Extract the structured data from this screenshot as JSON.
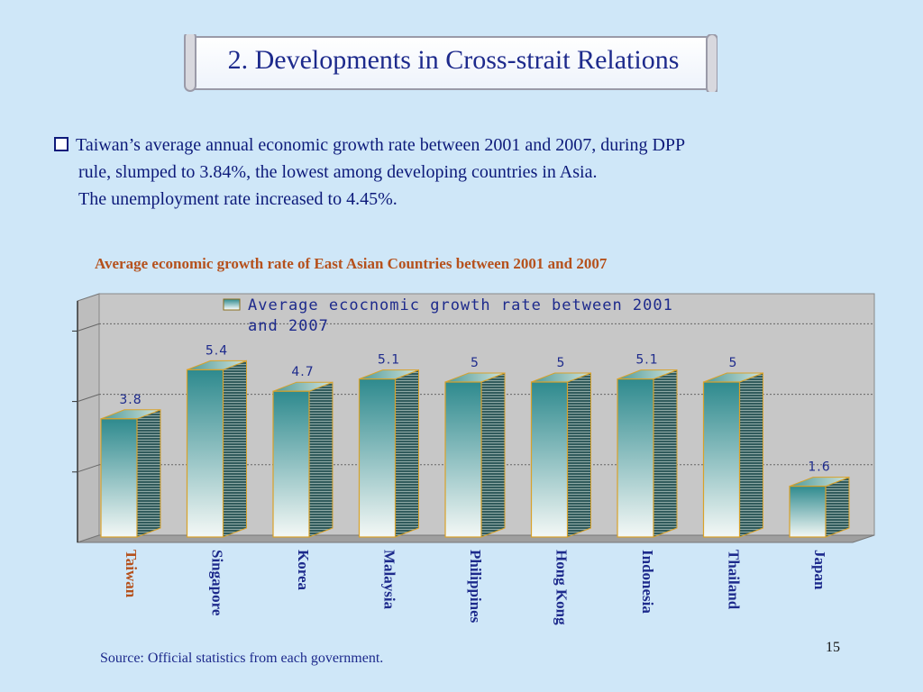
{
  "slide": {
    "title": "2. Developments in Cross-strait Relations",
    "bullet_line1": "Taiwan’s average annual economic growth rate between 2001 and 2007, during DPP",
    "bullet_line2": "rule, slumped to 3.84%, the lowest among developing countries in Asia.",
    "bullet_line3": "The unemployment rate increased to 4.45%.",
    "source": "Source: Official statistics from each government.",
    "page_number": "15"
  },
  "chart_data": {
    "type": "bar",
    "title": "Average economic growth rate of East Asian Countries between  2001 and 2007",
    "categories": [
      "Taiwan",
      "Singapore",
      "Korea",
      "Malaysia",
      "Philippines",
      "Hong Kong",
      "Indonesia",
      "Thailand",
      "Japan"
    ],
    "series": [
      {
        "name": "Average ecocnomic growth rate between 2001 and 2007",
        "values": [
          3.8,
          5.4,
          4.7,
          5.1,
          5,
          5,
          5.1,
          5,
          1.6
        ]
      }
    ],
    "data_labels": [
      "3.8",
      "5.4",
      "4.7",
      "5.1",
      "5",
      "5",
      "5.1",
      "5",
      "1.6"
    ],
    "legend_lines": [
      "Average ecocnomic growth rate between 2001",
      "and 2007"
    ],
    "ylim": [
      0,
      7
    ],
    "gridlines": [
      2.3,
      4.6,
      6.9
    ],
    "legend_position": "top",
    "highlight_category": "Taiwan",
    "colors": {
      "highlight_label": "#b5511c",
      "label": "#1d2a8c",
      "bar_dark": "#2e8a8e",
      "bar_light": "#f4f8f6",
      "bar_edge": "#d9a22a",
      "plot_bg": "#c7c7c7"
    }
  }
}
